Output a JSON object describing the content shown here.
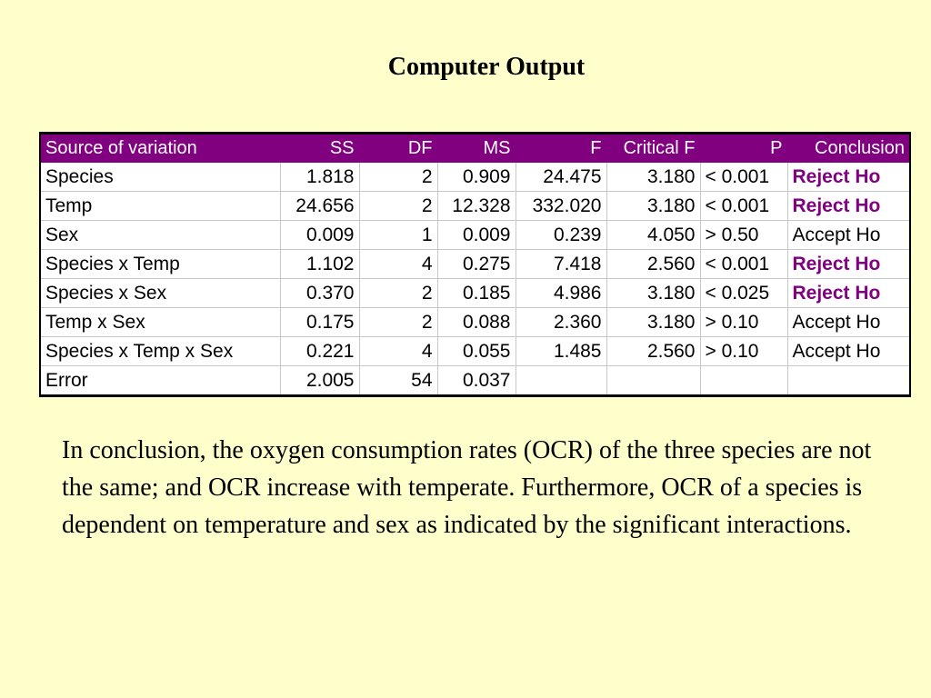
{
  "title": "Computer Output",
  "table": {
    "headers": [
      "Source of variation",
      "SS",
      "DF",
      "MS",
      "F",
      "Critical F",
      "P",
      "Conclusion"
    ],
    "rows": [
      {
        "source": "Species",
        "ss": "1.818",
        "df": "2",
        "ms": "0.909",
        "f": "24.475",
        "crit": "3.180",
        "p": "< 0.001",
        "conclusion": "Reject Ho",
        "reject": true
      },
      {
        "source": "Temp",
        "ss": "24.656",
        "df": "2",
        "ms": "12.328",
        "f": "332.020",
        "crit": "3.180",
        "p": "< 0.001",
        "conclusion": "Reject Ho",
        "reject": true
      },
      {
        "source": "Sex",
        "ss": "0.009",
        "df": "1",
        "ms": "0.009",
        "f": "0.239",
        "crit": "4.050",
        "p": "> 0.50",
        "conclusion": "Accept Ho",
        "reject": false
      },
      {
        "source": "Species x Temp",
        "ss": "1.102",
        "df": "4",
        "ms": "0.275",
        "f": "7.418",
        "crit": "2.560",
        "p": "< 0.001",
        "conclusion": "Reject Ho",
        "reject": true
      },
      {
        "source": "Species x Sex",
        "ss": "0.370",
        "df": "2",
        "ms": "0.185",
        "f": "4.986",
        "crit": "3.180",
        "p": "< 0.025",
        "conclusion": "Reject Ho",
        "reject": true
      },
      {
        "source": "Temp x Sex",
        "ss": "0.175",
        "df": "2",
        "ms": "0.088",
        "f": "2.360",
        "crit": "3.180",
        "p": "> 0.10",
        "conclusion": "Accept Ho",
        "reject": false
      },
      {
        "source": "Species x Temp x Sex",
        "ss": "0.221",
        "df": "4",
        "ms": "0.055",
        "f": "1.485",
        "crit": "2.560",
        "p": "> 0.10",
        "conclusion": "Accept Ho",
        "reject": false
      },
      {
        "source": "Error",
        "ss": "2.005",
        "df": "54",
        "ms": "0.037",
        "f": "",
        "crit": "",
        "p": "",
        "conclusion": "",
        "reject": false
      }
    ]
  },
  "conclusion": "In conclusion, the oxygen consumption rates (OCR) of the three species are not the same; and OCR increase with temperate. Furthermore, OCR of a species is dependent on temperature and sex as indicated by the significant interactions.",
  "colors": {
    "background": "#ffffcc",
    "header_bg": "#800080",
    "reject_text": "#800080"
  }
}
